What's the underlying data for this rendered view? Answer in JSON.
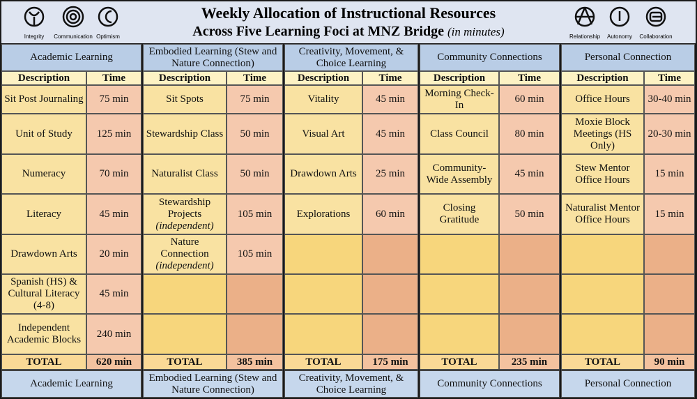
{
  "header": {
    "title_line1": "Weekly Allocation of Instructional Resources",
    "title_line2": "Across Five Learning Foci at MNZ Bridge",
    "title_note": "(in minutes)",
    "icons_left": [
      "Integrity",
      "Communication",
      "Optimism"
    ],
    "icons_right": [
      "Relationship",
      "Autonomy",
      "Collaboration"
    ]
  },
  "columns": [
    {
      "name": "Academic Learning",
      "desc_header": "Description",
      "time_header": "Time",
      "rows": [
        {
          "desc": "Sit Post Journaling",
          "time": "75 min"
        },
        {
          "desc": "Unit of Study",
          "time": "125 min"
        },
        {
          "desc": "Numeracy",
          "time": "70 min"
        },
        {
          "desc": "Literacy",
          "time": "45 min"
        },
        {
          "desc": "Drawdown Arts",
          "time": "20 min"
        },
        {
          "desc": "Spanish (HS) & Cultural Literacy (4-8)",
          "time": "45 min"
        },
        {
          "desc": "Independent Academic Blocks",
          "time": "240 min"
        }
      ],
      "total_label": "TOTAL",
      "total": "620 min"
    },
    {
      "name": "Embodied Learning (Stew and Nature Connection)",
      "desc_header": "Description",
      "time_header": "Time",
      "rows": [
        {
          "desc": "Sit Spots",
          "time": "75 min"
        },
        {
          "desc": "Stewardship Class",
          "time": "50 min"
        },
        {
          "desc": "Naturalist Class",
          "time": "50 min"
        },
        {
          "desc": "Stewardship Projects",
          "note": "(independent)",
          "time": "105 min"
        },
        {
          "desc": "Nature Connection",
          "note": "(independent)",
          "time": "105 min"
        }
      ],
      "total_label": "TOTAL",
      "total": "385 min"
    },
    {
      "name": "Creativity, Movement, & Choice Learning",
      "desc_header": "Description",
      "time_header": "Time",
      "rows": [
        {
          "desc": "Vitality",
          "time": "45 min"
        },
        {
          "desc": "Visual Art",
          "time": "45 min"
        },
        {
          "desc": "Drawdown Arts",
          "time": "25 min"
        },
        {
          "desc": "Explorations",
          "time": "60 min"
        }
      ],
      "total_label": "TOTAL",
      "total": "175 min"
    },
    {
      "name": "Community Connections",
      "desc_header": "Description",
      "time_header": "Time",
      "rows": [
        {
          "desc": "Morning Check-In",
          "time": "60 min"
        },
        {
          "desc": "Class Council",
          "time": "80 min"
        },
        {
          "desc": "Community-Wide Assembly",
          "time": "45 min"
        },
        {
          "desc": "Closing Gratitude",
          "time": "50 min"
        }
      ],
      "total_label": "TOTAL",
      "total": "235 min"
    },
    {
      "name": "Personal Connection",
      "desc_header": "Description",
      "time_header": "Time",
      "rows": [
        {
          "desc": "Office Hours",
          "time": "30-40 min"
        },
        {
          "desc": "Moxie Block Meetings (HS Only)",
          "time": "20-30 min"
        },
        {
          "desc": "Stew Mentor Office Hours",
          "time": "15 min"
        },
        {
          "desc": "Naturalist Mentor Office Hours",
          "time": "15 min"
        }
      ],
      "total_label": "TOTAL",
      "total": "90 min"
    }
  ]
}
